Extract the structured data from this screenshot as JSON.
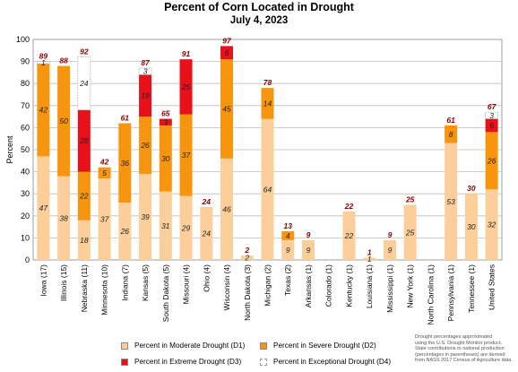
{
  "chart_data": {
    "type": "bar",
    "stacked": true,
    "title": "Percent of Corn Located in Drought",
    "subtitle": "July 4, 2023",
    "ylabel": "Percent",
    "xlabel": "",
    "ylim": [
      0,
      100
    ],
    "yticks": [
      "0",
      "10",
      "20",
      "30",
      "40",
      "50",
      "60",
      "70",
      "80",
      "90",
      "100"
    ],
    "grid": true,
    "legend_position": "bottom",
    "categories": [
      "Iowa (17)",
      "Illinois (15)",
      "Nebraska (11)",
      "Minnesota (10)",
      "Indiana (7)",
      "Kansas (5)",
      "South Dakota (5)",
      "Missouri (4)",
      "Ohio (4)",
      "Wisconsin (4)",
      "North Dakota (3)",
      "Michigan (2)",
      "Texas (2)",
      "Arkansas (1)",
      "Colorado (1)",
      "Kentucky (1)",
      "Louisiana (1)",
      "Mississippi (1)",
      "New York (1)",
      "North Carolina (1)",
      "Pennsylvania (1)",
      "Tennessee (1)",
      "United States"
    ],
    "series": [
      {
        "name": "Percent in Moderate Drought (D1)",
        "color": "#FCCF9A",
        "values": [
          47,
          38,
          18,
          37,
          26,
          39,
          31,
          29,
          24,
          46,
          2,
          64,
          9,
          9,
          0,
          22,
          1,
          9,
          25,
          0,
          53,
          30,
          32
        ]
      },
      {
        "name": "Percent in Severe Drought (D2)",
        "color": "#F7950F",
        "values": [
          42,
          50,
          22,
          5,
          36,
          26,
          30,
          37,
          0,
          45,
          0,
          14,
          4,
          0,
          0,
          0,
          0,
          0,
          0,
          0,
          8,
          0,
          26
        ]
      },
      {
        "name": "Percent in Extreme Drought (D3)",
        "color": "#E8111A",
        "values": [
          0,
          0,
          28,
          0,
          0,
          19,
          3,
          25,
          0,
          6,
          0,
          0,
          0,
          0,
          0,
          0,
          0,
          0,
          0,
          0,
          0,
          0,
          6
        ]
      },
      {
        "name": "Percent in Exceptional Drought (D4)",
        "color": "#FFFFFF",
        "values": [
          1,
          0,
          24,
          0,
          0,
          3,
          0,
          0,
          0,
          0,
          0,
          0,
          0,
          0,
          0,
          0,
          0,
          0,
          0,
          0,
          0,
          0,
          3
        ]
      }
    ],
    "segment_labels": [
      [
        "47",
        "42",
        "",
        "1"
      ],
      [
        "38",
        "50",
        "",
        ""
      ],
      [
        "18",
        "22",
        "28",
        "24"
      ],
      [
        "37",
        "5",
        "",
        ""
      ],
      [
        "26",
        "36",
        "",
        ""
      ],
      [
        "39",
        "26",
        "19",
        "3"
      ],
      [
        "31",
        "30",
        "3",
        ""
      ],
      [
        "29",
        "37",
        "25",
        ""
      ],
      [
        "24",
        "",
        "",
        ""
      ],
      [
        "46",
        "45",
        "6",
        ""
      ],
      [
        "2",
        "",
        "",
        ""
      ],
      [
        "64",
        "14",
        "",
        ""
      ],
      [
        "9",
        "4",
        "",
        ""
      ],
      [
        "9",
        "",
        "",
        ""
      ],
      [
        "",
        "",
        "",
        ""
      ],
      [
        "22",
        "",
        "",
        ""
      ],
      [
        "1",
        "",
        "",
        ""
      ],
      [
        "9",
        "",
        "",
        ""
      ],
      [
        "25",
        "",
        "",
        ""
      ],
      [
        "",
        "",
        "",
        ""
      ],
      [
        "53",
        "8",
        "",
        ""
      ],
      [
        "30",
        "",
        "",
        ""
      ],
      [
        "32",
        "26",
        "6",
        "3"
      ]
    ],
    "totals": [
      "89",
      "88",
      "92",
      "42",
      "61",
      "87",
      "65",
      "91",
      "24",
      "97",
      "2",
      "78",
      "13",
      "9",
      "",
      "22",
      "1",
      "9",
      "25",
      "",
      "61",
      "30",
      "67"
    ]
  },
  "note": {
    "line1": "Drought percentages approximated",
    "line2": "using the U.S. Drought Monitor product.",
    "line3": "State contributions to national production",
    "line4": "(percentages in parentheses) are derived",
    "line5": "from NASS 2017 Census of Agriculture data."
  }
}
